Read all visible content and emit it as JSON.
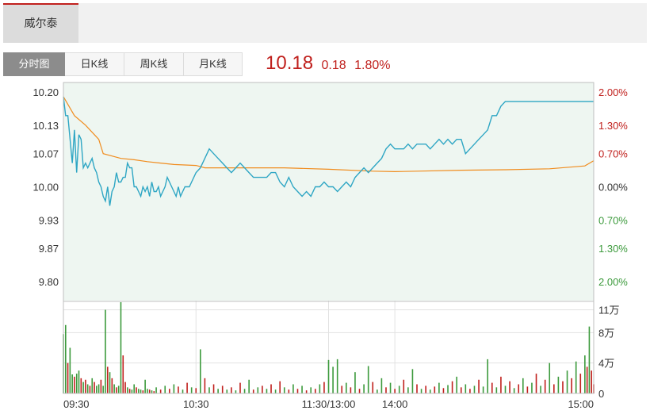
{
  "header": {
    "stock_name": "威尔泰"
  },
  "tabs": [
    {
      "label": "分时图",
      "active": true
    },
    {
      "label": "日K线",
      "active": false
    },
    {
      "label": "周K线",
      "active": false
    },
    {
      "label": "月K线",
      "active": false
    }
  ],
  "quote": {
    "price": "10.18",
    "change": "0.18",
    "change_pct": "1.80%"
  },
  "colors": {
    "up": "#c0201d",
    "down": "#3c9a3c",
    "price_line": "#2ea6c4",
    "avg_line": "#f08c1e",
    "area_fill": "#eef6f1",
    "grid": "#e2e2e2"
  },
  "chart_data": {
    "type": "line",
    "prev_close": 10.0,
    "price_axis": {
      "ticks": [
        10.2,
        10.13,
        10.07,
        10.0,
        9.93,
        9.87,
        9.8
      ],
      "labels": [
        "10.20",
        "10.13",
        "10.07",
        "10.00",
        "9.93",
        "9.87",
        "9.80"
      ],
      "ylim": [
        9.76,
        10.22
      ]
    },
    "pct_axis": {
      "labels": [
        "2.00%",
        "1.30%",
        "0.70%",
        "0.00%",
        "0.70%",
        "1.30%",
        "2.00%"
      ],
      "label_values": [
        10.2,
        10.13,
        10.07,
        10.0,
        9.93,
        9.87,
        9.8
      ]
    },
    "volume_axis": {
      "labels": [
        "11万",
        "8万",
        "4万",
        "0"
      ],
      "values": [
        110000,
        80000,
        40000,
        0
      ],
      "ylim": [
        0,
        120000
      ]
    },
    "x_ticks": [
      "09:30",
      "10:30",
      "11:30/13:00",
      "14:00",
      "15:00"
    ],
    "x_tick_minutes": [
      0,
      60,
      120,
      150,
      240
    ],
    "price_series": {
      "name": "price",
      "minutes": [
        0,
        1,
        2,
        3,
        4,
        5,
        6,
        7,
        8,
        9,
        10,
        11,
        12,
        13,
        14,
        15,
        16,
        17,
        18,
        19,
        20,
        21,
        22,
        23,
        24,
        25,
        26,
        27,
        28,
        29,
        30,
        31,
        32,
        33,
        34,
        35,
        36,
        37,
        38,
        39,
        40,
        41,
        42,
        43,
        44,
        45,
        46,
        47,
        48,
        49,
        50,
        51,
        52,
        53,
        54,
        55,
        56,
        57,
        58,
        59,
        60,
        62,
        64,
        66,
        68,
        70,
        72,
        74,
        76,
        78,
        80,
        82,
        84,
        86,
        88,
        90,
        92,
        94,
        96,
        98,
        100,
        102,
        104,
        106,
        108,
        110,
        112,
        114,
        116,
        118,
        120,
        122,
        124,
        126,
        128,
        130,
        132,
        134,
        136,
        138,
        140,
        142,
        144,
        146,
        148,
        150,
        152,
        154,
        156,
        158,
        160,
        162,
        164,
        166,
        168,
        170,
        172,
        174,
        176,
        178,
        180,
        182,
        184,
        186,
        188,
        190,
        192,
        194,
        196,
        198,
        200,
        202,
        204,
        206,
        208,
        210,
        212,
        214,
        216,
        218,
        220,
        222,
        224,
        226,
        228,
        230,
        232,
        234,
        236,
        238,
        240
      ],
      "values": [
        10.19,
        10.15,
        10.15,
        10.1,
        10.05,
        10.12,
        10.03,
        10.11,
        10.1,
        10.04,
        10.05,
        10.04,
        10.05,
        10.06,
        10.04,
        10.03,
        10.01,
        10.0,
        9.98,
        9.97,
        10.0,
        9.96,
        9.99,
        10.0,
        10.03,
        10.01,
        10.01,
        10.02,
        10.02,
        10.05,
        10.04,
        10.04,
        10.0,
        10.0,
        9.99,
        9.98,
        10.0,
        9.99,
        10.0,
        9.98,
        10.01,
        9.99,
        9.99,
        10.0,
        9.98,
        9.99,
        10.0,
        10.02,
        10.01,
        10.0,
        9.99,
        9.98,
        10.0,
        9.98,
        9.99,
        10.0,
        10.0,
        10.0,
        10.01,
        10.02,
        10.03,
        10.04,
        10.06,
        10.08,
        10.07,
        10.06,
        10.05,
        10.04,
        10.03,
        10.04,
        10.05,
        10.04,
        10.03,
        10.02,
        10.02,
        10.02,
        10.02,
        10.03,
        10.03,
        10.01,
        10.0,
        10.02,
        10.0,
        9.99,
        9.98,
        9.99,
        9.98,
        10.0,
        10.0,
        10.01,
        10.0,
        10.0,
        9.99,
        10.0,
        10.01,
        10.0,
        10.02,
        10.03,
        10.04,
        10.03,
        10.04,
        10.05,
        10.06,
        10.08,
        10.09,
        10.08,
        10.08,
        10.08,
        10.09,
        10.08,
        10.09,
        10.09,
        10.09,
        10.08,
        10.09,
        10.1,
        10.09,
        10.1,
        10.09,
        10.1,
        10.1,
        10.07,
        10.08,
        10.09,
        10.1,
        10.11,
        10.12,
        10.15,
        10.15,
        10.17,
        10.18,
        10.18,
        10.18,
        10.18,
        10.18,
        10.18,
        10.18,
        10.18,
        10.18,
        10.18,
        10.18,
        10.18,
        10.18,
        10.18,
        10.18,
        10.18,
        10.18,
        10.18,
        10.18,
        10.18,
        10.18
      ]
    },
    "avg_series": {
      "name": "average",
      "minutes": [
        0,
        5,
        10,
        16,
        18,
        22,
        26,
        32,
        38,
        44,
        50,
        60,
        64,
        80,
        100,
        120,
        140,
        150,
        160,
        180,
        200,
        220,
        236,
        240
      ],
      "values": [
        10.19,
        10.15,
        10.13,
        10.1,
        10.07,
        10.065,
        10.06,
        10.057,
        10.053,
        10.05,
        10.047,
        10.045,
        10.04,
        10.04,
        10.04,
        10.037,
        10.033,
        10.032,
        10.033,
        10.035,
        10.036,
        10.038,
        10.044,
        10.055
      ]
    },
    "volume_bars": [
      {
        "m": 0,
        "v": 78000,
        "up": false
      },
      {
        "m": 1,
        "v": 90000,
        "up": false
      },
      {
        "m": 2,
        "v": 40000,
        "up": true
      },
      {
        "m": 3,
        "v": 60000,
        "up": false
      },
      {
        "m": 4,
        "v": 25000,
        "up": false
      },
      {
        "m": 5,
        "v": 22000,
        "up": true
      },
      {
        "m": 6,
        "v": 26000,
        "up": false
      },
      {
        "m": 7,
        "v": 30000,
        "up": false
      },
      {
        "m": 8,
        "v": 20000,
        "up": true
      },
      {
        "m": 9,
        "v": 15000,
        "up": false
      },
      {
        "m": 10,
        "v": 18000,
        "up": true
      },
      {
        "m": 11,
        "v": 12000,
        "up": false
      },
      {
        "m": 12,
        "v": 10000,
        "up": true
      },
      {
        "m": 13,
        "v": 20000,
        "up": false
      },
      {
        "m": 14,
        "v": 15000,
        "up": true
      },
      {
        "m": 15,
        "v": 10000,
        "up": false
      },
      {
        "m": 16,
        "v": 12000,
        "up": false
      },
      {
        "m": 17,
        "v": 18000,
        "up": true
      },
      {
        "m": 18,
        "v": 10000,
        "up": false
      },
      {
        "m": 19,
        "v": 110000,
        "up": false
      },
      {
        "m": 20,
        "v": 35000,
        "up": true
      },
      {
        "m": 21,
        "v": 28000,
        "up": false
      },
      {
        "m": 22,
        "v": 20000,
        "up": true
      },
      {
        "m": 23,
        "v": 12000,
        "up": false
      },
      {
        "m": 24,
        "v": 8000,
        "up": true
      },
      {
        "m": 25,
        "v": 10000,
        "up": false
      },
      {
        "m": 26,
        "v": 120000,
        "up": false
      },
      {
        "m": 27,
        "v": 50000,
        "up": true
      },
      {
        "m": 28,
        "v": 15000,
        "up": true
      },
      {
        "m": 29,
        "v": 8000,
        "up": false
      },
      {
        "m": 30,
        "v": 6000,
        "up": true
      },
      {
        "m": 31,
        "v": 5000,
        "up": false
      },
      {
        "m": 32,
        "v": 12000,
        "up": false
      },
      {
        "m": 33,
        "v": 8000,
        "up": true
      },
      {
        "m": 34,
        "v": 6000,
        "up": false
      },
      {
        "m": 35,
        "v": 5000,
        "up": false
      },
      {
        "m": 36,
        "v": 4000,
        "up": true
      },
      {
        "m": 37,
        "v": 18000,
        "up": false
      },
      {
        "m": 38,
        "v": 6000,
        "up": false
      },
      {
        "m": 39,
        "v": 5000,
        "up": true
      },
      {
        "m": 40,
        "v": 4000,
        "up": false
      },
      {
        "m": 41,
        "v": 3000,
        "up": true
      },
      {
        "m": 42,
        "v": 8000,
        "up": false
      },
      {
        "m": 44,
        "v": 5000,
        "up": true
      },
      {
        "m": 46,
        "v": 10000,
        "up": false
      },
      {
        "m": 48,
        "v": 6000,
        "up": true
      },
      {
        "m": 50,
        "v": 12000,
        "up": false
      },
      {
        "m": 52,
        "v": 9000,
        "up": true
      },
      {
        "m": 54,
        "v": 5000,
        "up": false
      },
      {
        "m": 56,
        "v": 14000,
        "up": true
      },
      {
        "m": 58,
        "v": 8000,
        "up": false
      },
      {
        "m": 60,
        "v": 7000,
        "up": true
      },
      {
        "m": 62,
        "v": 58000,
        "up": false
      },
      {
        "m": 64,
        "v": 20000,
        "up": true
      },
      {
        "m": 66,
        "v": 8000,
        "up": false
      },
      {
        "m": 68,
        "v": 12000,
        "up": true
      },
      {
        "m": 70,
        "v": 6000,
        "up": false
      },
      {
        "m": 72,
        "v": 10000,
        "up": true
      },
      {
        "m": 74,
        "v": 5000,
        "up": false
      },
      {
        "m": 76,
        "v": 8000,
        "up": true
      },
      {
        "m": 78,
        "v": 4000,
        "up": false
      },
      {
        "m": 80,
        "v": 14000,
        "up": true
      },
      {
        "m": 82,
        "v": 6000,
        "up": false
      },
      {
        "m": 84,
        "v": 18000,
        "up": false
      },
      {
        "m": 86,
        "v": 5000,
        "up": true
      },
      {
        "m": 88,
        "v": 8000,
        "up": false
      },
      {
        "m": 90,
        "v": 10000,
        "up": true
      },
      {
        "m": 92,
        "v": 6000,
        "up": false
      },
      {
        "m": 94,
        "v": 12000,
        "up": true
      },
      {
        "m": 96,
        "v": 5000,
        "up": false
      },
      {
        "m": 98,
        "v": 16000,
        "up": true
      },
      {
        "m": 100,
        "v": 8000,
        "up": false
      },
      {
        "m": 102,
        "v": 5000,
        "up": true
      },
      {
        "m": 104,
        "v": 12000,
        "up": false
      },
      {
        "m": 106,
        "v": 6000,
        "up": true
      },
      {
        "m": 108,
        "v": 10000,
        "up": false
      },
      {
        "m": 110,
        "v": 4000,
        "up": true
      },
      {
        "m": 112,
        "v": 8000,
        "up": false
      },
      {
        "m": 114,
        "v": 6000,
        "up": true
      },
      {
        "m": 116,
        "v": 12000,
        "up": false
      },
      {
        "m": 118,
        "v": 15000,
        "up": true
      },
      {
        "m": 120,
        "v": 44000,
        "up": false
      },
      {
        "m": 122,
        "v": 35000,
        "up": false
      },
      {
        "m": 124,
        "v": 45000,
        "up": false
      },
      {
        "m": 126,
        "v": 10000,
        "up": true
      },
      {
        "m": 128,
        "v": 14000,
        "up": false
      },
      {
        "m": 130,
        "v": 8000,
        "up": true
      },
      {
        "m": 132,
        "v": 28000,
        "up": false
      },
      {
        "m": 134,
        "v": 6000,
        "up": true
      },
      {
        "m": 136,
        "v": 12000,
        "up": false
      },
      {
        "m": 138,
        "v": 36000,
        "up": false
      },
      {
        "m": 140,
        "v": 15000,
        "up": true
      },
      {
        "m": 142,
        "v": 5000,
        "up": false
      },
      {
        "m": 144,
        "v": 20000,
        "up": false
      },
      {
        "m": 146,
        "v": 8000,
        "up": true
      },
      {
        "m": 148,
        "v": 14000,
        "up": false
      },
      {
        "m": 150,
        "v": 6000,
        "up": true
      },
      {
        "m": 152,
        "v": 10000,
        "up": false
      },
      {
        "m": 154,
        "v": 18000,
        "up": true
      },
      {
        "m": 156,
        "v": 8000,
        "up": false
      },
      {
        "m": 158,
        "v": 32000,
        "up": false
      },
      {
        "m": 160,
        "v": 12000,
        "up": true
      },
      {
        "m": 162,
        "v": 6000,
        "up": false
      },
      {
        "m": 164,
        "v": 10000,
        "up": true
      },
      {
        "m": 166,
        "v": 5000,
        "up": false
      },
      {
        "m": 168,
        "v": 9000,
        "up": true
      },
      {
        "m": 170,
        "v": 14000,
        "up": false
      },
      {
        "m": 172,
        "v": 7000,
        "up": true
      },
      {
        "m": 174,
        "v": 11000,
        "up": false
      },
      {
        "m": 176,
        "v": 16000,
        "up": true
      },
      {
        "m": 178,
        "v": 22000,
        "up": false
      },
      {
        "m": 180,
        "v": 8000,
        "up": true
      },
      {
        "m": 182,
        "v": 12000,
        "up": false
      },
      {
        "m": 184,
        "v": 6000,
        "up": true
      },
      {
        "m": 186,
        "v": 10000,
        "up": false
      },
      {
        "m": 188,
        "v": 18000,
        "up": true
      },
      {
        "m": 190,
        "v": 9000,
        "up": false
      },
      {
        "m": 192,
        "v": 45000,
        "up": false
      },
      {
        "m": 194,
        "v": 14000,
        "up": true
      },
      {
        "m": 196,
        "v": 8000,
        "up": false
      },
      {
        "m": 198,
        "v": 22000,
        "up": true
      },
      {
        "m": 200,
        "v": 10000,
        "up": false
      },
      {
        "m": 202,
        "v": 16000,
        "up": true
      },
      {
        "m": 204,
        "v": 7000,
        "up": false
      },
      {
        "m": 206,
        "v": 12000,
        "up": true
      },
      {
        "m": 208,
        "v": 20000,
        "up": false
      },
      {
        "m": 210,
        "v": 9000,
        "up": true
      },
      {
        "m": 212,
        "v": 14000,
        "up": false
      },
      {
        "m": 214,
        "v": 26000,
        "up": true
      },
      {
        "m": 216,
        "v": 10000,
        "up": false
      },
      {
        "m": 218,
        "v": 18000,
        "up": true
      },
      {
        "m": 220,
        "v": 40000,
        "up": false
      },
      {
        "m": 222,
        "v": 12000,
        "up": true
      },
      {
        "m": 224,
        "v": 22000,
        "up": false
      },
      {
        "m": 226,
        "v": 16000,
        "up": true
      },
      {
        "m": 228,
        "v": 30000,
        "up": false
      },
      {
        "m": 230,
        "v": 20000,
        "up": true
      },
      {
        "m": 232,
        "v": 42000,
        "up": false
      },
      {
        "m": 234,
        "v": 26000,
        "up": true
      },
      {
        "m": 236,
        "v": 50000,
        "up": false
      },
      {
        "m": 237,
        "v": 35000,
        "up": true
      },
      {
        "m": 238,
        "v": 88000,
        "up": false
      },
      {
        "m": 239,
        "v": 30000,
        "up": true
      },
      {
        "m": 240,
        "v": 12000,
        "up": true
      }
    ]
  }
}
